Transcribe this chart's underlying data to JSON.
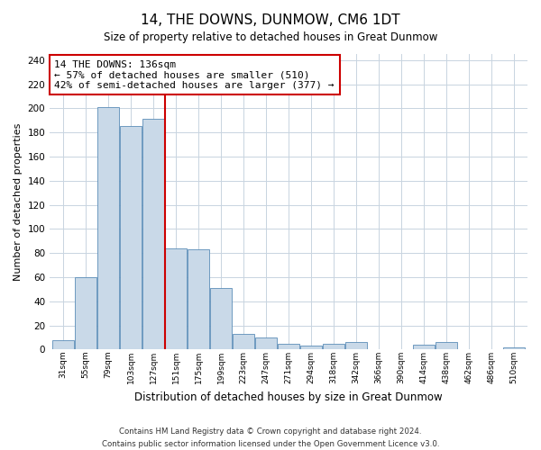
{
  "title": "14, THE DOWNS, DUNMOW, CM6 1DT",
  "subtitle": "Size of property relative to detached houses in Great Dunmow",
  "xlabel": "Distribution of detached houses by size in Great Dunmow",
  "ylabel": "Number of detached properties",
  "bar_labels": [
    "31sqm",
    "55sqm",
    "79sqm",
    "103sqm",
    "127sqm",
    "151sqm",
    "175sqm",
    "199sqm",
    "223sqm",
    "247sqm",
    "271sqm",
    "294sqm",
    "318sqm",
    "342sqm",
    "366sqm",
    "390sqm",
    "414sqm",
    "438sqm",
    "462sqm",
    "486sqm",
    "510sqm"
  ],
  "bar_heights": [
    8,
    60,
    201,
    185,
    191,
    84,
    83,
    51,
    13,
    10,
    5,
    3,
    5,
    6,
    0,
    0,
    4,
    6,
    0,
    0,
    2
  ],
  "bar_color": "#c9d9e8",
  "bar_edge_color": "#5b8db8",
  "property_line_x": 4.5,
  "property_line_color": "#cc0000",
  "annotation_text": "14 THE DOWNS: 136sqm\n← 57% of detached houses are smaller (510)\n42% of semi-detached houses are larger (377) →",
  "annotation_box_color": "#ffffff",
  "annotation_box_edge": "#cc0000",
  "ylim": [
    0,
    245
  ],
  "yticks": [
    0,
    20,
    40,
    60,
    80,
    100,
    120,
    140,
    160,
    180,
    200,
    220,
    240
  ],
  "footer_line1": "Contains HM Land Registry data © Crown copyright and database right 2024.",
  "footer_line2": "Contains public sector information licensed under the Open Government Licence v3.0.",
  "background_color": "#ffffff",
  "grid_color": "#c8d4e0"
}
